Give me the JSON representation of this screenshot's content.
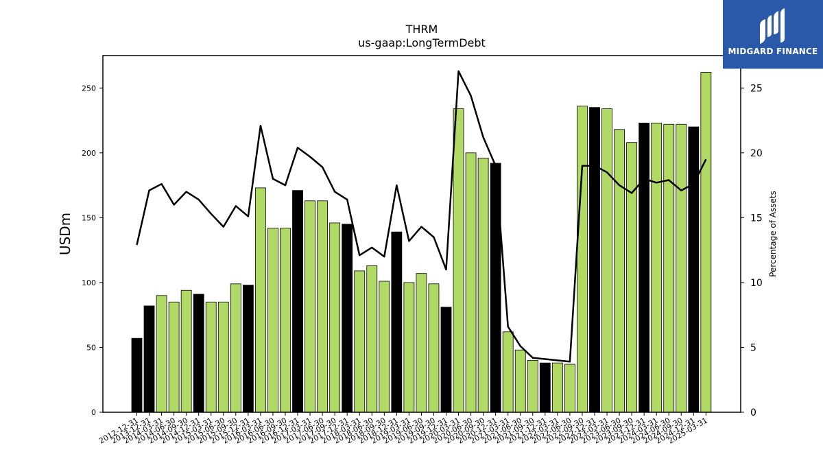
{
  "logo": {
    "text": "MIDGARD FINANCE",
    "icon": "midgard-logo-icon",
    "background": "#2b59aa"
  },
  "chart_data": {
    "type": "bar",
    "title": "THRM",
    "subtitle": "us-gaap:LongTermDebt",
    "ylabel": "USDm",
    "y2label": "Percentage of Assets",
    "ylim": [
      0,
      275
    ],
    "y2lim": [
      0,
      27.5
    ],
    "yticks": [
      0,
      50,
      100,
      150,
      200,
      250
    ],
    "y2ticks": [
      0,
      5,
      10,
      15,
      20,
      25
    ],
    "grid": false,
    "colors": {
      "annual": "#000000",
      "quarterly": "#b0d966",
      "line": "#000000"
    },
    "categories": [
      "2012-12-31",
      "2013-12-31",
      "2014-03-31",
      "2014-06-30",
      "2014-09-30",
      "2014-12-31",
      "2015-03-31",
      "2015-06-30",
      "2015-09-30",
      "2015-12-31",
      "2016-03-31",
      "2016-06-30",
      "2016-09-30",
      "2016-12-31",
      "2017-03-31",
      "2017-06-30",
      "2017-09-30",
      "2017-12-31",
      "2018-03-31",
      "2018-06-30",
      "2018-09-30",
      "2018-12-31",
      "2019-03-31",
      "2019-06-30",
      "2019-09-30",
      "2019-12-31",
      "2020-03-31",
      "2020-06-30",
      "2020-09-30",
      "2020-12-31",
      "2021-03-31",
      "2021-06-30",
      "2021-09-30",
      "2021-12-31",
      "2022-03-31",
      "2022-06-30",
      "2022-09-30",
      "2022-12-31",
      "2023-03-31",
      "2023-06-30",
      "2023-09-30",
      "2023-12-31",
      "2024-03-31",
      "2024-06-30",
      "2024-09-30",
      "2024-12-31",
      "2025-03-31"
    ],
    "annual": [
      true,
      true,
      false,
      false,
      false,
      true,
      false,
      false,
      false,
      true,
      false,
      false,
      false,
      true,
      false,
      false,
      false,
      true,
      false,
      false,
      false,
      true,
      false,
      false,
      false,
      true,
      false,
      false,
      false,
      true,
      false,
      false,
      false,
      true,
      false,
      false,
      false,
      true,
      false,
      false,
      false,
      true,
      false,
      false,
      false,
      true,
      false
    ],
    "series": [
      {
        "values": [
          57,
          82,
          90,
          85,
          94,
          91,
          85,
          85,
          99,
          98,
          173,
          142,
          142,
          171,
          163,
          163,
          146,
          145,
          109,
          113,
          101,
          139,
          100,
          107,
          99,
          81,
          234,
          200,
          196,
          192,
          62,
          48,
          40,
          38,
          38,
          37,
          236,
          235,
          234,
          218,
          208,
          223,
          223,
          222,
          222,
          220,
          262
        ]
      },
      {
        "axis": "right",
        "type": "line",
        "values": [
          12.9,
          17.1,
          17.6,
          16.0,
          17.0,
          16.4,
          15.3,
          14.3,
          15.9,
          15.1,
          22.1,
          18.0,
          17.5,
          20.4,
          19.7,
          18.9,
          17.0,
          16.4,
          12.1,
          12.7,
          12.0,
          17.5,
          13.2,
          14.3,
          13.5,
          11.0,
          26.3,
          24.4,
          21.2,
          19.0,
          6.6,
          5.1,
          4.2,
          4.1,
          4.0,
          3.9,
          19.0,
          19.0,
          18.5,
          17.5,
          16.9,
          18.0,
          17.7,
          17.9,
          17.1,
          17.6,
          19.5
        ]
      }
    ]
  }
}
